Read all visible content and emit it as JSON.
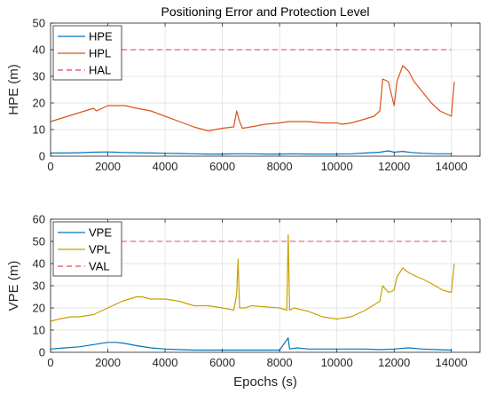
{
  "chart_data": [
    {
      "type": "line",
      "title": "Positioning Error and Protection Level",
      "xlabel": "",
      "ylabel": "HPE (m)",
      "xlim": [
        0,
        15000
      ],
      "ylim": [
        0,
        50
      ],
      "xticks": [
        0,
        2000,
        4000,
        6000,
        8000,
        10000,
        12000,
        14000
      ],
      "yticks": [
        0,
        10,
        20,
        30,
        40,
        50
      ],
      "xtick_labels": [
        "0",
        "2000",
        "4000",
        "6000",
        "8000",
        "10000",
        "12000",
        "14000"
      ],
      "ytick_labels": [
        "0",
        "10",
        "20",
        "30",
        "40",
        "50"
      ],
      "grid": true,
      "legend_position": "top-left",
      "series": [
        {
          "name": "HPE",
          "color": "#0072BD",
          "style": "solid",
          "x": [
            0,
            500,
            1000,
            1500,
            2000,
            2500,
            3000,
            3500,
            4000,
            4500,
            5000,
            5500,
            6000,
            6500,
            7000,
            7500,
            8000,
            8500,
            9000,
            9500,
            10000,
            10500,
            11000,
            11500,
            11800,
            12000,
            12300,
            12600,
            13000,
            13500,
            14000
          ],
          "values": [
            1.2,
            1.2,
            1.3,
            1.5,
            1.6,
            1.4,
            1.3,
            1.2,
            1.1,
            1.0,
            0.9,
            0.8,
            0.8,
            0.9,
            0.9,
            0.8,
            0.8,
            0.9,
            0.8,
            0.8,
            0.8,
            0.9,
            1.2,
            1.5,
            2.0,
            1.5,
            1.8,
            1.4,
            1.1,
            0.9,
            0.9
          ]
        },
        {
          "name": "HPL",
          "color": "#D95319",
          "style": "solid",
          "x": [
            0,
            300,
            600,
            900,
            1200,
            1500,
            1600,
            1800,
            2000,
            2300,
            2600,
            3000,
            3500,
            4000,
            4500,
            5000,
            5500,
            6000,
            6400,
            6500,
            6600,
            6700,
            7000,
            7500,
            8000,
            8300,
            8500,
            9000,
            9500,
            10000,
            10200,
            10500,
            11000,
            11300,
            11500,
            11600,
            11800,
            12000,
            12100,
            12300,
            12500,
            12700,
            13000,
            13300,
            13600,
            13800,
            14000,
            14100
          ],
          "values": [
            13,
            14,
            15,
            16,
            17,
            18,
            17,
            18,
            19,
            19,
            19,
            18,
            17,
            15,
            13,
            11,
            9.5,
            10.5,
            11,
            17,
            13,
            10.5,
            11,
            12,
            12.5,
            13,
            13,
            13,
            12.5,
            12.5,
            12,
            12.5,
            14,
            15,
            17,
            29,
            28,
            19,
            28,
            34,
            32,
            28,
            24,
            20,
            17,
            16,
            15,
            28
          ]
        },
        {
          "name": "HAL",
          "color": "#E8394A",
          "style": "dashed",
          "x": [
            0,
            14000
          ],
          "values": [
            40,
            40
          ]
        }
      ]
    },
    {
      "type": "line",
      "title": "",
      "xlabel": "Epochs (s)",
      "ylabel": "VPE (m)",
      "xlim": [
        0,
        15000
      ],
      "ylim": [
        0,
        60
      ],
      "xticks": [
        0,
        2000,
        4000,
        6000,
        8000,
        10000,
        12000,
        14000
      ],
      "yticks": [
        0,
        10,
        20,
        30,
        40,
        50,
        60
      ],
      "xtick_labels": [
        "0",
        "2000",
        "4000",
        "6000",
        "8000",
        "10000",
        "12000",
        "14000"
      ],
      "ytick_labels": [
        "0",
        "10",
        "20",
        "30",
        "40",
        "50",
        "60"
      ],
      "grid": true,
      "legend_position": "top-left",
      "series": [
        {
          "name": "VPE",
          "color": "#0072BD",
          "style": "solid",
          "x": [
            0,
            500,
            1000,
            1500,
            2000,
            2300,
            2600,
            3000,
            3500,
            4000,
            4500,
            5000,
            5500,
            6000,
            6500,
            7000,
            7500,
            8000,
            8300,
            8350,
            8600,
            9000,
            9500,
            10000,
            10500,
            11000,
            11500,
            12000,
            12500,
            13000,
            13500,
            14000
          ],
          "values": [
            1.5,
            2.0,
            2.5,
            3.5,
            4.5,
            4.5,
            4.0,
            3.0,
            2.0,
            1.5,
            1.2,
            1.0,
            1.0,
            1.0,
            1.0,
            1.0,
            1.0,
            1.0,
            6.5,
            1.5,
            2.0,
            1.5,
            1.5,
            1.5,
            1.5,
            1.5,
            1.2,
            1.5,
            2.0,
            1.5,
            1.2,
            1.0
          ]
        },
        {
          "name": "VPL",
          "color": "#C8A000",
          "style": "solid",
          "x": [
            0,
            300,
            700,
            1000,
            1500,
            2000,
            2500,
            3000,
            3200,
            3500,
            4000,
            4500,
            5000,
            5500,
            6000,
            6400,
            6500,
            6550,
            6600,
            6800,
            7000,
            7500,
            8000,
            8250,
            8300,
            8350,
            8500,
            9000,
            9500,
            10000,
            10500,
            11000,
            11500,
            11600,
            11800,
            12000,
            12100,
            12300,
            12500,
            12800,
            13000,
            13300,
            13700,
            14000,
            14100
          ],
          "values": [
            14,
            15,
            16,
            16,
            17,
            20,
            23,
            25,
            25,
            24,
            24,
            23,
            21,
            21,
            20,
            19,
            26,
            42,
            20,
            20,
            21,
            20.5,
            20,
            19,
            53,
            19,
            20,
            18.5,
            16,
            15,
            16,
            19,
            23,
            30,
            27,
            28,
            34,
            38,
            36,
            34,
            33,
            31,
            28,
            27,
            40
          ]
        },
        {
          "name": "VAL",
          "color": "#D9534F",
          "style": "dashed",
          "x": [
            0,
            14000
          ],
          "values": [
            50,
            50
          ]
        }
      ]
    }
  ]
}
